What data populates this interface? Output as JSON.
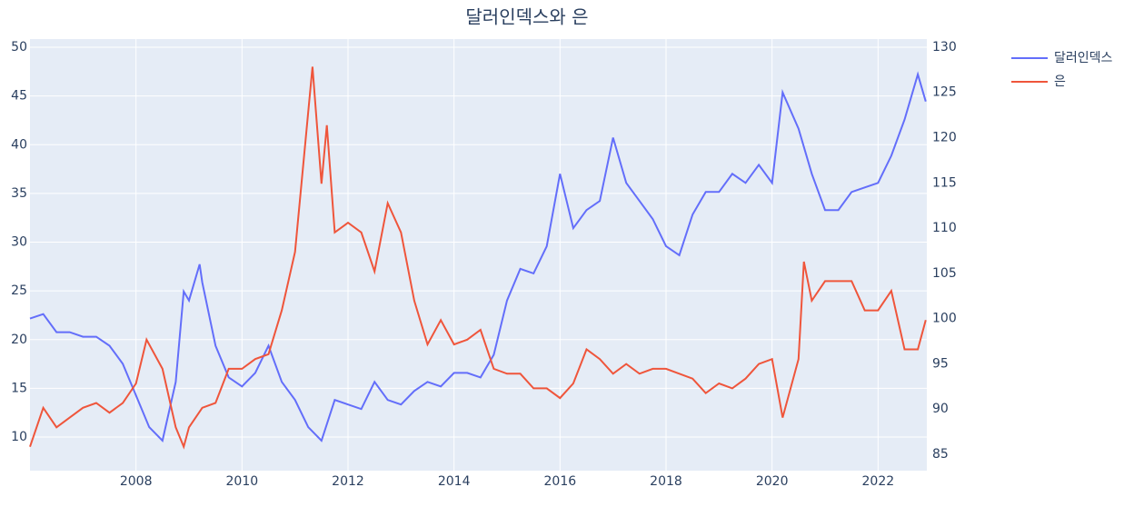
{
  "chart_data": {
    "type": "line",
    "title": "달러인덱스와 은",
    "xlim": [
      2006.0,
      2022.92
    ],
    "xticks": [
      2008,
      2010,
      2012,
      2014,
      2016,
      2018,
      2020,
      2022
    ],
    "ylim": [
      6.55,
      50.84
    ],
    "yticks": [
      10,
      15,
      20,
      25,
      30,
      35,
      40,
      45,
      50
    ],
    "y2lim": [
      83.19,
      130.9
    ],
    "y2ticks": [
      85,
      90,
      95,
      100,
      105,
      110,
      115,
      120,
      125,
      130
    ],
    "grid": true,
    "legend": "right",
    "series": [
      {
        "name": "달러인덱스",
        "color": "#636efa",
        "axis": "y2",
        "x": [
          2006.0,
          2006.25,
          2006.5,
          2006.75,
          2007.0,
          2007.25,
          2007.5,
          2007.75,
          2008.0,
          2008.25,
          2008.5,
          2008.75,
          2008.9,
          2009.0,
          2009.2,
          2009.25,
          2009.5,
          2009.75,
          2010.0,
          2010.25,
          2010.5,
          2010.75,
          2011.0,
          2011.25,
          2011.5,
          2011.75,
          2012.0,
          2012.25,
          2012.5,
          2012.75,
          2013.0,
          2013.25,
          2013.5,
          2013.75,
          2014.0,
          2014.25,
          2014.5,
          2014.75,
          2015.0,
          2015.25,
          2015.5,
          2015.75,
          2016.0,
          2016.25,
          2016.5,
          2016.75,
          2017.0,
          2017.25,
          2017.5,
          2017.75,
          2018.0,
          2018.25,
          2018.5,
          2018.75,
          2019.0,
          2019.25,
          2019.5,
          2019.75,
          2020.0,
          2020.2,
          2020.5,
          2020.75,
          2021.0,
          2021.25,
          2021.5,
          2021.75,
          2022.0,
          2022.25,
          2022.5,
          2022.75,
          2022.9
        ],
        "values": [
          100,
          100.5,
          98.5,
          98.5,
          98,
          98,
          97,
          95,
          91.5,
          88,
          86.5,
          93,
          103,
          102,
          106,
          104,
          97,
          93.5,
          92.5,
          94,
          97,
          93,
          91,
          88,
          86.5,
          91,
          90.5,
          90,
          93,
          91,
          90.5,
          92,
          93,
          92.5,
          94,
          94,
          93.5,
          96,
          102,
          105.5,
          105,
          108,
          116,
          110,
          112,
          113,
          120,
          115,
          113,
          111,
          108,
          107,
          111.5,
          114,
          114,
          116,
          115,
          117,
          115,
          125,
          121,
          116,
          112,
          112,
          114,
          114.5,
          115,
          118,
          122,
          127,
          124
        ]
      },
      {
        "name": "은",
        "color": "#ef553b",
        "x": [
          2006.0,
          2006.25,
          2006.5,
          2006.75,
          2007.0,
          2007.25,
          2007.5,
          2007.75,
          2008.0,
          2008.2,
          2008.5,
          2008.75,
          2008.9,
          2009.0,
          2009.25,
          2009.5,
          2009.75,
          2010.0,
          2010.25,
          2010.5,
          2010.75,
          2011.0,
          2011.33,
          2011.5,
          2011.6,
          2011.75,
          2012.0,
          2012.25,
          2012.5,
          2012.75,
          2013.0,
          2013.25,
          2013.5,
          2013.75,
          2014.0,
          2014.25,
          2014.5,
          2014.75,
          2015.0,
          2015.25,
          2015.5,
          2015.75,
          2016.0,
          2016.25,
          2016.5,
          2016.75,
          2017.0,
          2017.25,
          2017.5,
          2017.75,
          2018.0,
          2018.25,
          2018.5,
          2018.75,
          2019.0,
          2019.25,
          2019.5,
          2019.75,
          2020.0,
          2020.2,
          2020.5,
          2020.6,
          2020.75,
          2021.0,
          2021.25,
          2021.5,
          2021.75,
          2022.0,
          2022.25,
          2022.5,
          2022.75,
          2022.9
        ],
        "values": [
          9,
          13,
          11,
          12,
          13,
          13.5,
          12.5,
          13.5,
          15.5,
          20,
          17,
          11,
          9,
          11,
          13,
          13.5,
          17,
          17,
          18,
          18.5,
          23,
          29,
          48,
          36,
          42,
          31,
          32,
          31,
          27,
          34,
          31,
          24,
          19.5,
          22,
          19.5,
          20,
          21,
          17,
          16.5,
          16.5,
          15,
          15,
          14,
          15.5,
          19,
          18,
          16.5,
          17.5,
          16.5,
          17,
          17,
          16.5,
          16,
          14.5,
          15.5,
          15,
          16,
          17.5,
          18,
          12,
          18,
          28,
          24,
          26,
          26,
          26,
          23,
          23,
          25,
          19,
          19,
          22
        ]
      }
    ]
  }
}
